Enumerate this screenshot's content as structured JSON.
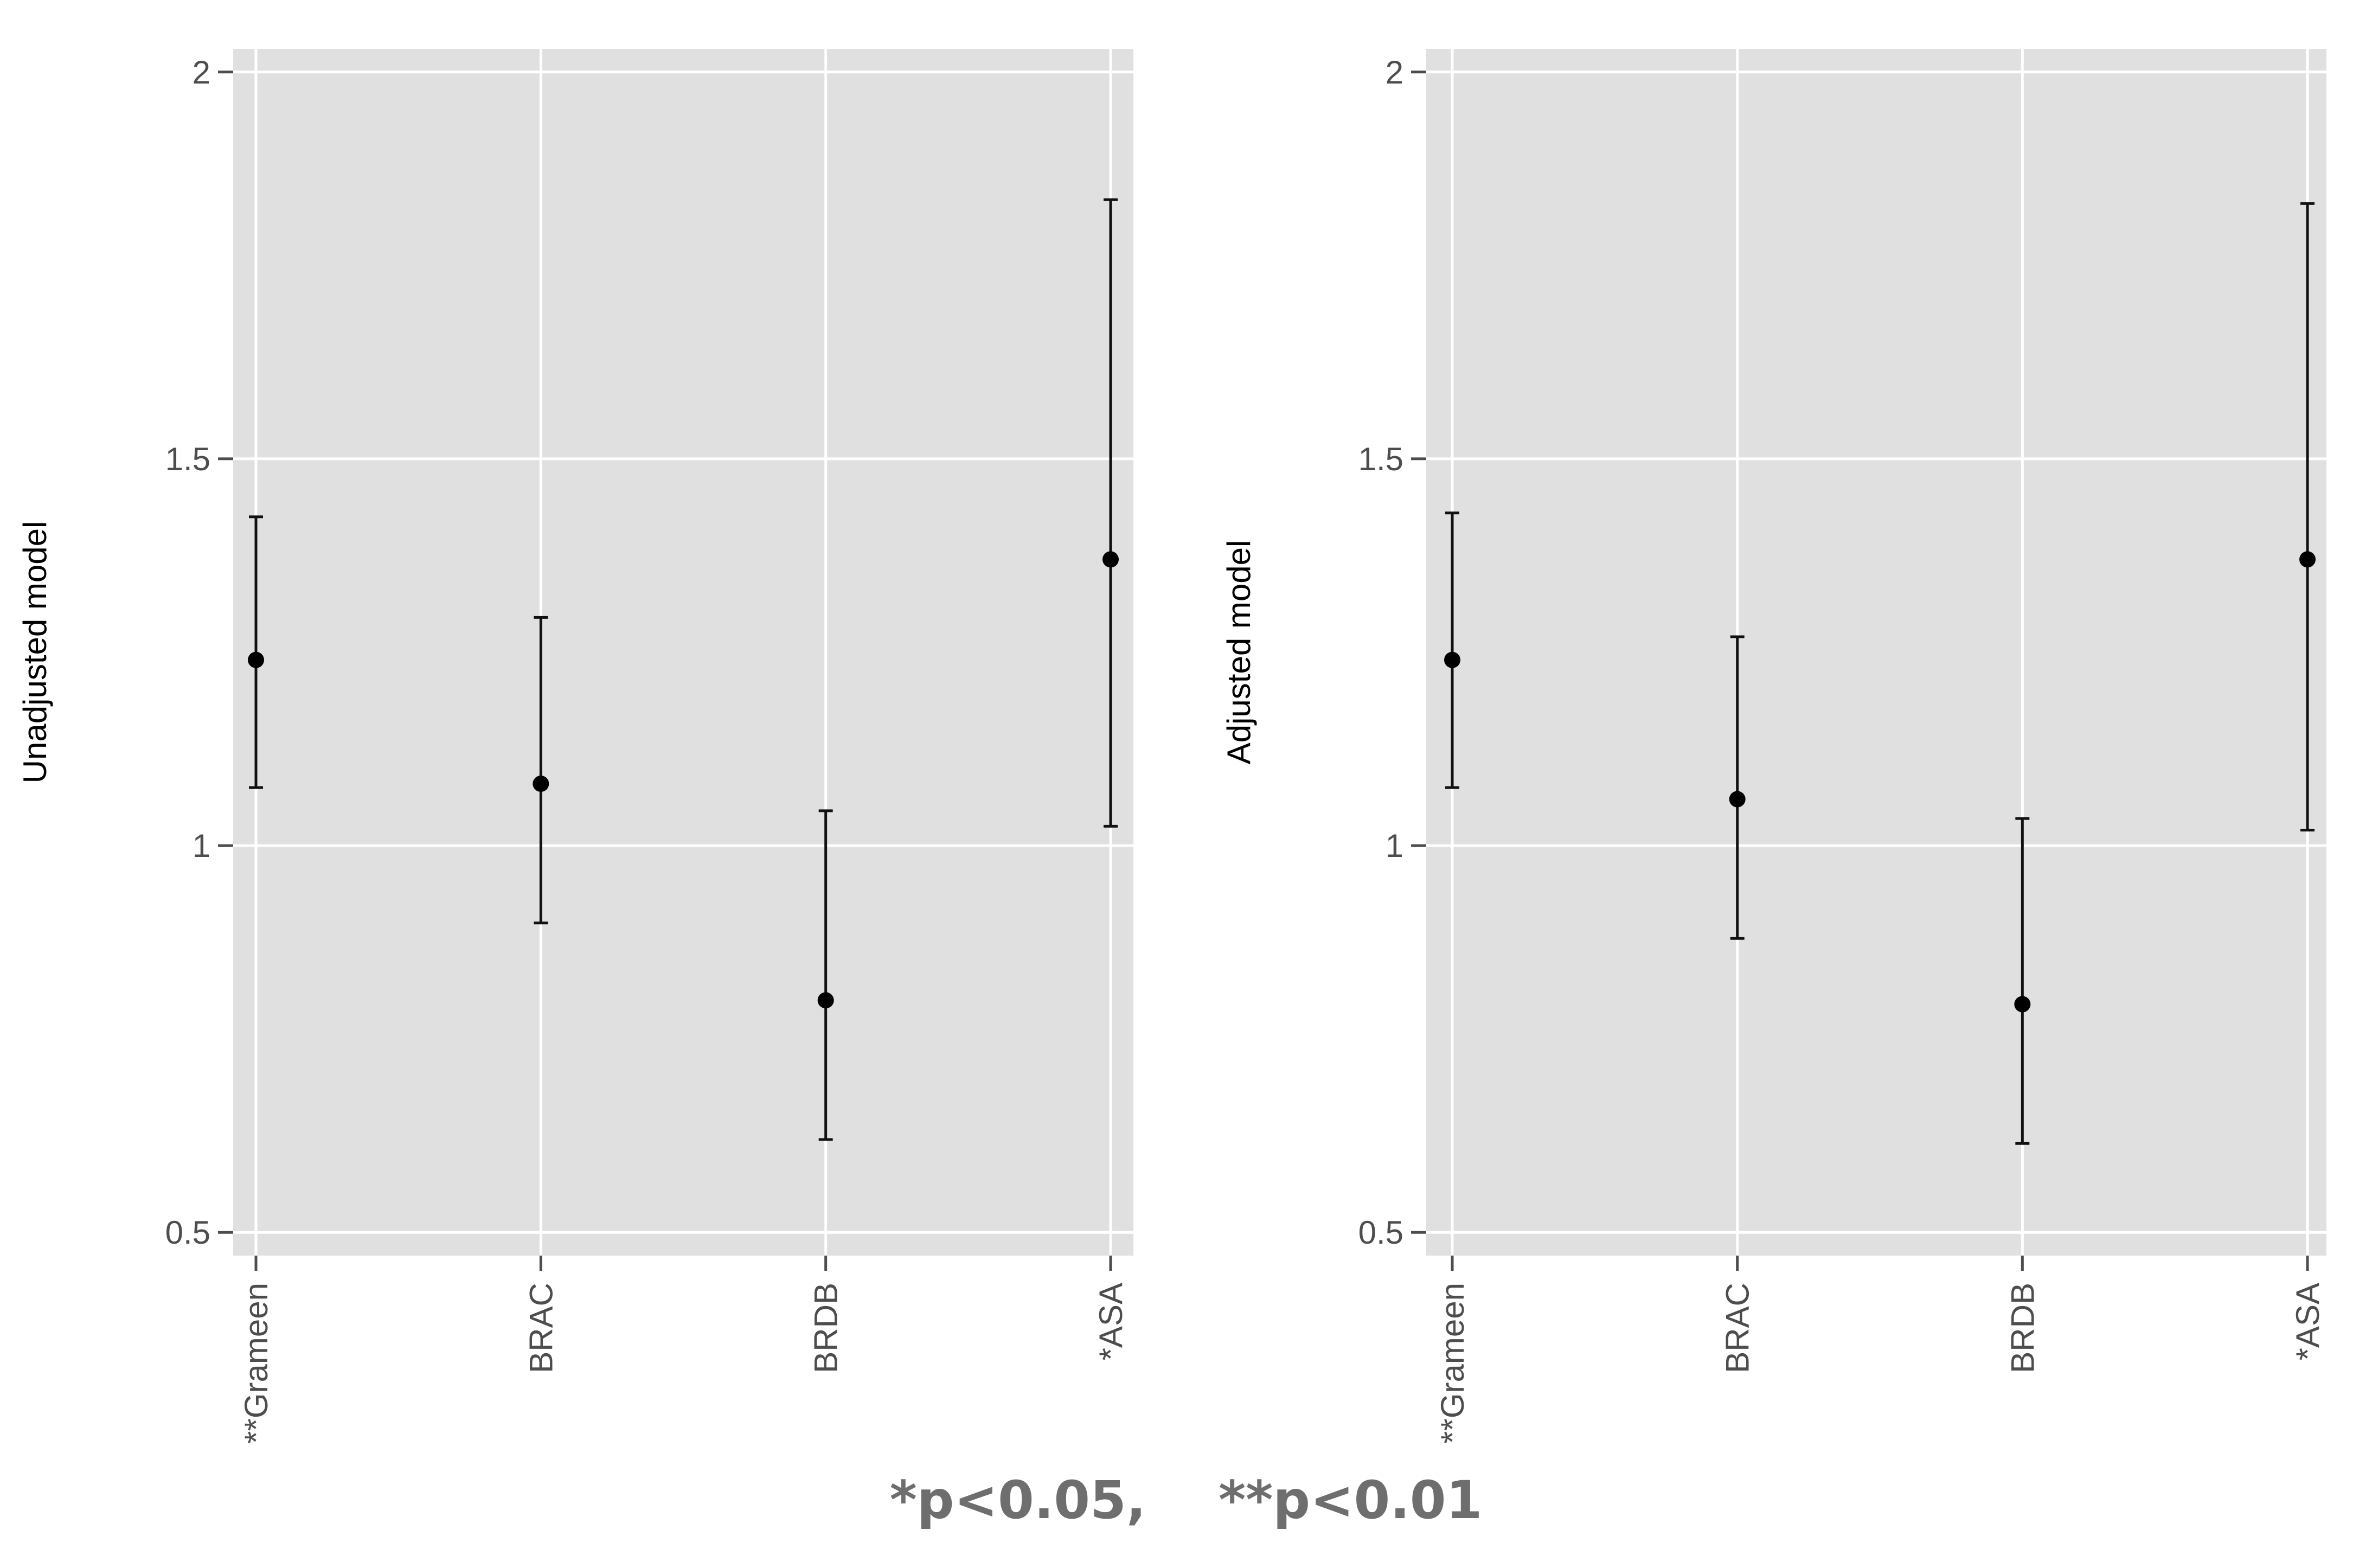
{
  "footnote": "*p<0.05,    **p<0.01",
  "chart_data": [
    {
      "type": "scatter",
      "ylabel": "Unadjusted model",
      "categories": [
        "**Grameen",
        "BRAC",
        "BRDB",
        "*ASA"
      ],
      "estimates": [
        1.24,
        1.08,
        0.8,
        1.37
      ],
      "lower": [
        1.075,
        0.9,
        0.62,
        1.025
      ],
      "upper": [
        1.425,
        1.295,
        1.045,
        1.835
      ],
      "ylim": [
        0.47,
        2.03
      ],
      "yticks": [
        0.5,
        1,
        1.5,
        2
      ],
      "ytick_labels": [
        "0.5",
        "1",
        "1.5",
        "2"
      ],
      "grid": true
    },
    {
      "type": "scatter",
      "ylabel": "Adjusted model",
      "categories": [
        "**Grameen",
        "BRAC",
        "BRDB",
        "*ASA"
      ],
      "estimates": [
        1.24,
        1.06,
        0.795,
        1.37
      ],
      "lower": [
        1.075,
        0.88,
        0.615,
        1.02
      ],
      "upper": [
        1.43,
        1.27,
        1.035,
        1.83
      ],
      "ylim": [
        0.47,
        2.03
      ],
      "yticks": [
        0.5,
        1,
        1.5,
        2
      ],
      "ytick_labels": [
        "0.5",
        "1",
        "1.5",
        "2"
      ],
      "grid": true
    }
  ]
}
